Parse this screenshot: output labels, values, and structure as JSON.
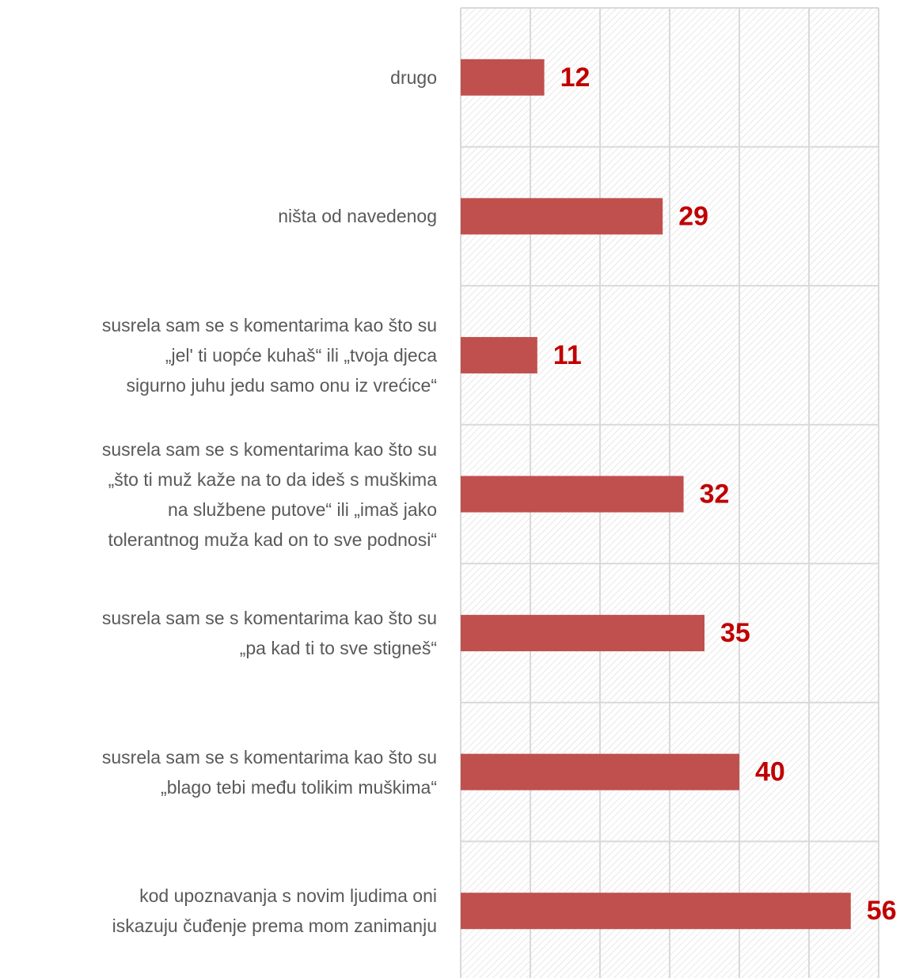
{
  "chart_data": {
    "type": "hbar",
    "categories": [
      "drugo",
      "ništa od navedenog",
      "susrela sam se s komentarima kao što su\n„jel' ti uopće kuhaš“ ili „tvoja djeca\nsigurno juhu jedu samo onu iz vrećice“",
      "susrela sam se s komentarima kao što su\n„što ti muž kaže na to da ideš s muškima\nna službene putove“ ili „imaš jako\ntolerantnog muža kad on to sve podnosi“",
      "susrela sam se s komentarima kao što su\n„pa kad ti to sve stigneš“",
      "susrela sam se s komentarima kao što su\n„blago tebi među tolikim muškima“",
      "kod upoznavanja s novim ljudima oni\niskazuju čuđenje prema mom zanimanju"
    ],
    "values": [
      12,
      29,
      11,
      32,
      35,
      40,
      56
    ],
    "color": "#c0504d",
    "label_color": "#c00000",
    "xlim": [
      0,
      60
    ],
    "xticks": [
      0,
      10,
      20,
      30,
      40,
      50,
      60
    ],
    "grid": true
  }
}
